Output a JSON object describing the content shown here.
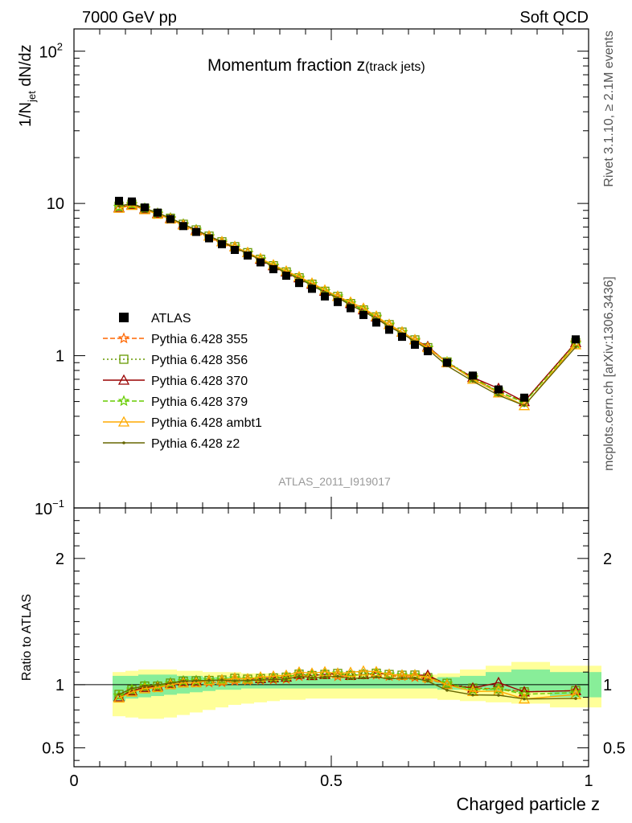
{
  "header": {
    "left": "7000 GeV pp",
    "right": "Soft QCD",
    "side_top": "Rivet 3.1.10, ≥ 2.1M events",
    "side_bottom": "mcplots.cern.ch [arXiv:1306.3436]",
    "analysis_tag": "ATLAS_2011_I919017"
  },
  "chart_data": {
    "type": "line",
    "title_main": "Momentum fraction z",
    "title_sub": "(track jets)",
    "ylabel_base": "1/N",
    "ylabel_sub": "jet",
    "ylabel_tail": " dN/dz",
    "ratio_ylabel": "Ratio to ATLAS",
    "xlabel": "Charged particle z",
    "xlim": [
      0,
      1
    ],
    "ylim": [
      0.1,
      140
    ],
    "yscale": "log",
    "ratio_ylim": [
      0.35,
      2.4
    ],
    "x_ticks": [
      "0",
      "0.5",
      "1"
    ],
    "y_ticks_main": [
      "10^-1",
      "1",
      "10",
      "10^2"
    ],
    "y_ticks_ratio": [
      "0.5",
      "1",
      "2"
    ],
    "legend_position": "left-center",
    "x": [
      0.0875,
      0.1125,
      0.1375,
      0.1625,
      0.1875,
      0.2125,
      0.2375,
      0.2625,
      0.2875,
      0.3125,
      0.3375,
      0.3625,
      0.3875,
      0.4125,
      0.4375,
      0.4625,
      0.4875,
      0.5125,
      0.5375,
      0.5625,
      0.5875,
      0.6125,
      0.6375,
      0.6625,
      0.6875,
      0.725,
      0.775,
      0.825,
      0.875,
      0.975
    ],
    "data": {
      "name": "ATLAS",
      "values": [
        10.4,
        10.3,
        9.4,
        8.7,
        7.9,
        7.1,
        6.5,
        5.9,
        5.4,
        4.95,
        4.55,
        4.1,
        3.7,
        3.35,
        3.0,
        2.75,
        2.45,
        2.25,
        2.05,
        1.85,
        1.65,
        1.48,
        1.33,
        1.18,
        1.07,
        0.9,
        0.74,
        0.6,
        0.53,
        1.28
      ],
      "band_inner": [
        [
          0.87,
          1.07
        ],
        [
          0.89,
          1.07
        ],
        [
          0.9,
          1.08
        ],
        [
          0.91,
          1.08
        ],
        [
          0.92,
          1.08
        ],
        [
          0.93,
          1.07
        ],
        [
          0.94,
          1.07
        ],
        [
          0.95,
          1.06
        ],
        [
          0.96,
          1.06
        ],
        [
          0.96,
          1.06
        ],
        [
          0.97,
          1.05
        ],
        [
          0.97,
          1.05
        ],
        [
          0.97,
          1.05
        ],
        [
          0.97,
          1.05
        ],
        [
          0.97,
          1.05
        ],
        [
          0.97,
          1.05
        ],
        [
          0.97,
          1.05
        ],
        [
          0.97,
          1.05
        ],
        [
          0.97,
          1.05
        ],
        [
          0.97,
          1.05
        ],
        [
          0.97,
          1.05
        ],
        [
          0.97,
          1.05
        ],
        [
          0.97,
          1.05
        ],
        [
          0.97,
          1.05
        ],
        [
          0.97,
          1.05
        ],
        [
          0.96,
          1.06
        ],
        [
          0.96,
          1.07
        ],
        [
          0.95,
          1.1
        ],
        [
          0.94,
          1.12
        ],
        [
          0.9,
          1.1
        ]
      ],
      "band_outer": [
        [
          0.75,
          1.1
        ],
        [
          0.74,
          1.11
        ],
        [
          0.73,
          1.12
        ],
        [
          0.73,
          1.12
        ],
        [
          0.74,
          1.12
        ],
        [
          0.76,
          1.11
        ],
        [
          0.78,
          1.11
        ],
        [
          0.8,
          1.1
        ],
        [
          0.82,
          1.1
        ],
        [
          0.84,
          1.1
        ],
        [
          0.85,
          1.09
        ],
        [
          0.86,
          1.09
        ],
        [
          0.87,
          1.09
        ],
        [
          0.88,
          1.08
        ],
        [
          0.88,
          1.08
        ],
        [
          0.89,
          1.08
        ],
        [
          0.89,
          1.08
        ],
        [
          0.89,
          1.08
        ],
        [
          0.89,
          1.08
        ],
        [
          0.89,
          1.08
        ],
        [
          0.89,
          1.08
        ],
        [
          0.89,
          1.08
        ],
        [
          0.89,
          1.08
        ],
        [
          0.89,
          1.08
        ],
        [
          0.89,
          1.08
        ],
        [
          0.88,
          1.09
        ],
        [
          0.87,
          1.12
        ],
        [
          0.86,
          1.15
        ],
        [
          0.85,
          1.18
        ],
        [
          0.82,
          1.15
        ]
      ]
    },
    "series": [
      {
        "name": "Pythia 6.428 355",
        "color": "#ff6600",
        "dash": "6,3",
        "marker": "star",
        "values": [
          9.5,
          9.8,
          9.2,
          8.5,
          7.9,
          7.2,
          6.6,
          6.0,
          5.5,
          5.1,
          4.7,
          4.25,
          3.85,
          3.5,
          3.2,
          2.95,
          2.65,
          2.4,
          2.2,
          2.0,
          1.78,
          1.58,
          1.42,
          1.25,
          1.12,
          0.9,
          0.72,
          0.58,
          0.5,
          1.22
        ]
      },
      {
        "name": "Pythia 6.428 356",
        "color": "#669900",
        "dash": "2,3",
        "marker": "square",
        "values": [
          9.6,
          9.9,
          9.3,
          8.6,
          8.0,
          7.3,
          6.7,
          6.1,
          5.6,
          5.2,
          4.75,
          4.3,
          3.9,
          3.55,
          3.25,
          2.95,
          2.65,
          2.45,
          2.2,
          2.0,
          1.8,
          1.6,
          1.43,
          1.27,
          1.13,
          0.91,
          0.72,
          0.58,
          0.5,
          1.22
        ]
      },
      {
        "name": "Pythia 6.428 370",
        "color": "#990000",
        "dash": "",
        "marker": "triangle",
        "values": [
          9.4,
          9.8,
          9.2,
          8.6,
          8.0,
          7.3,
          6.7,
          6.1,
          5.6,
          5.2,
          4.75,
          4.3,
          3.9,
          3.55,
          3.25,
          2.95,
          2.65,
          2.45,
          2.2,
          2.0,
          1.8,
          1.6,
          1.43,
          1.27,
          1.15,
          0.9,
          0.72,
          0.61,
          0.5,
          1.22
        ]
      },
      {
        "name": "Pythia 6.428 379",
        "color": "#66cc00",
        "dash": "6,3",
        "marker": "star",
        "values": [
          9.5,
          9.9,
          9.3,
          8.6,
          8.0,
          7.3,
          6.7,
          6.1,
          5.6,
          5.2,
          4.75,
          4.3,
          3.9,
          3.55,
          3.25,
          2.95,
          2.65,
          2.45,
          2.2,
          2.0,
          1.8,
          1.6,
          1.43,
          1.27,
          1.13,
          0.91,
          0.71,
          0.58,
          0.49,
          1.2
        ]
      },
      {
        "name": "Pythia 6.428 ambt1",
        "color": "#ffaa00",
        "dash": "",
        "marker": "triangle",
        "values": [
          9.3,
          9.7,
          9.1,
          8.5,
          7.9,
          7.2,
          6.6,
          6.1,
          5.6,
          5.2,
          4.75,
          4.35,
          3.95,
          3.6,
          3.3,
          3.0,
          2.7,
          2.45,
          2.25,
          2.05,
          1.82,
          1.6,
          1.43,
          1.27,
          1.13,
          0.9,
          0.7,
          0.57,
          0.47,
          1.18
        ]
      },
      {
        "name": "Pythia 6.428 z2",
        "color": "#666600",
        "dash": "",
        "marker": "dot",
        "values": [
          9.6,
          10.0,
          9.3,
          8.7,
          8.0,
          7.3,
          6.7,
          6.1,
          5.6,
          5.1,
          4.7,
          4.25,
          3.85,
          3.5,
          3.2,
          2.9,
          2.6,
          2.4,
          2.15,
          1.95,
          1.75,
          1.55,
          1.4,
          1.24,
          1.1,
          0.86,
          0.68,
          0.55,
          0.47,
          1.14
        ]
      }
    ]
  }
}
